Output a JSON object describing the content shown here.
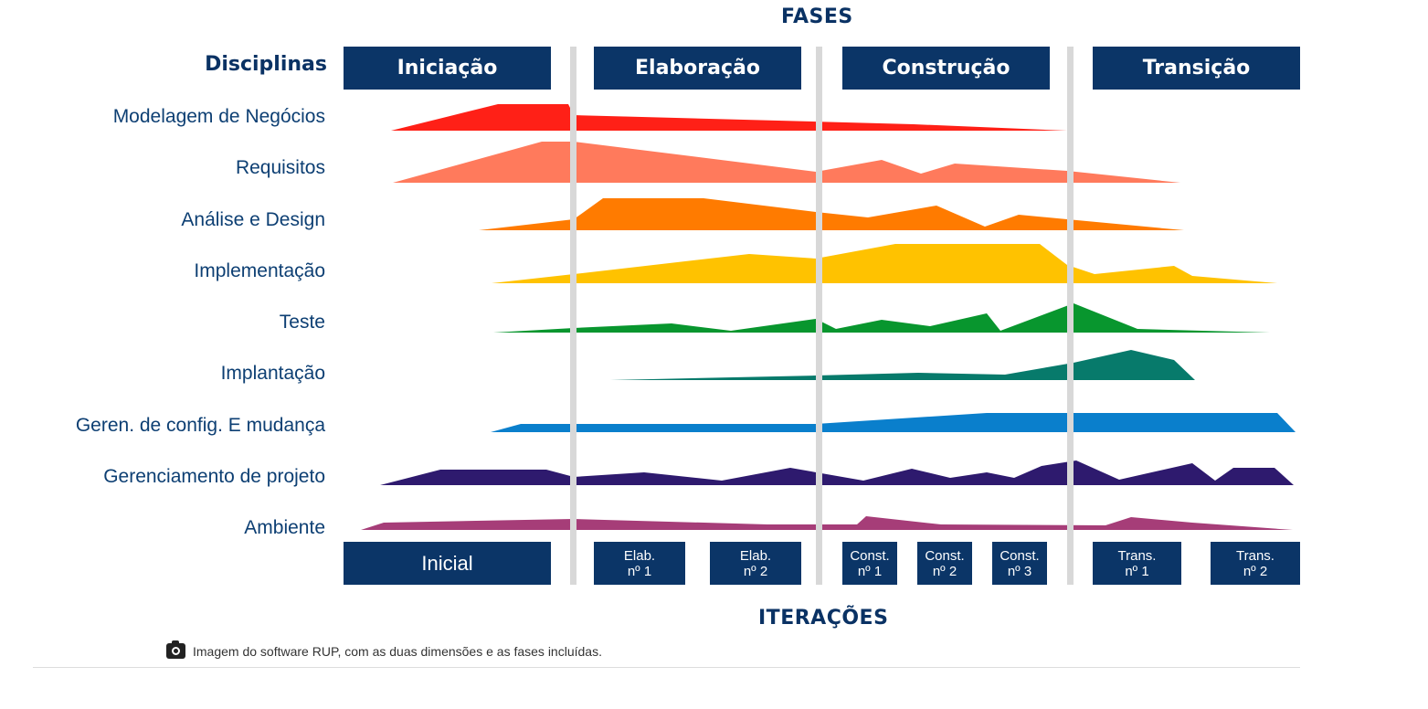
{
  "header": {
    "fases_title": "FASES",
    "disciplinas_title": "Disciplinas"
  },
  "phases": [
    "Iniciação",
    "Elaboração",
    "Construção",
    "Transição"
  ],
  "disciplines": [
    {
      "label": "Modelagem de Negócios",
      "color": "#ff2017"
    },
    {
      "label": "Requisitos",
      "color": "#ff7a5c"
    },
    {
      "label": "Análise e Design",
      "color": "#ff7b00"
    },
    {
      "label": "Implementação",
      "color": "#ffc200"
    },
    {
      "label": "Teste",
      "color": "#08962e"
    },
    {
      "label": "Implantação",
      "color": "#077a6b"
    },
    {
      "label": "Geren. de config. E mudança",
      "color": "#0a7fcc"
    },
    {
      "label": "Gerenciamento de projeto",
      "color": "#2e1a6e"
    },
    {
      "label": "Ambiente",
      "color": "#a63d78"
    }
  ],
  "iterations": [
    {
      "line1": "Inicial",
      "line2": ""
    },
    {
      "line1": "Elab.",
      "line2": "nº 1"
    },
    {
      "line1": "Elab.",
      "line2": "nº 2"
    },
    {
      "line1": "Const.",
      "line2": "nº 1"
    },
    {
      "line1": "Const.",
      "line2": "nº 2"
    },
    {
      "line1": "Const.",
      "line2": "nº 3"
    },
    {
      "line1": "Trans.",
      "line2": "nº 1"
    },
    {
      "line1": "Trans.",
      "line2": "nº 2"
    }
  ],
  "footer": {
    "iteracoes_title": "ITERAÇÕES",
    "caption": "Imagem do software RUP, com as duas dimensões e as fases incluídas.",
    "caption_icon": "camera-icon"
  },
  "colors": {
    "box": "#0b3567",
    "title": "#0a3264",
    "label": "#0d3f73",
    "separator": "#d8d8d8"
  }
}
